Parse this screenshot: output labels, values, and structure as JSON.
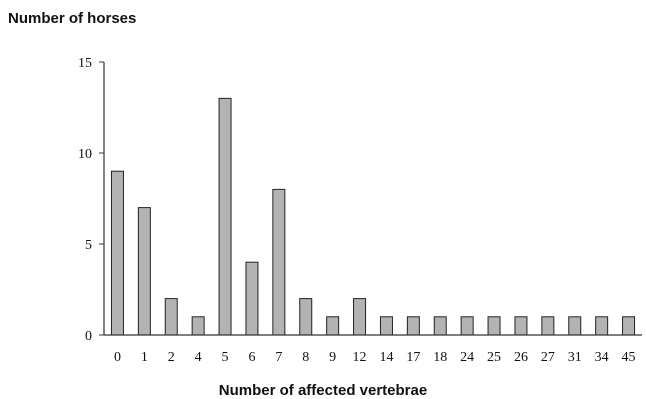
{
  "chart_data": {
    "type": "bar",
    "title": "",
    "ylabel": "Number of horses",
    "xlabel": "Number of affected vertebrae",
    "categories": [
      "0",
      "1",
      "2",
      "4",
      "5",
      "6",
      "7",
      "8",
      "9",
      "12",
      "14",
      "17",
      "18",
      "24",
      "25",
      "26",
      "27",
      "31",
      "34",
      "45"
    ],
    "values": [
      9,
      7,
      2,
      1,
      13,
      4,
      8,
      2,
      1,
      2,
      1,
      1,
      1,
      1,
      1,
      1,
      1,
      1,
      1,
      1
    ],
    "ylim": [
      0,
      15
    ],
    "yticks": [
      0,
      5,
      10,
      15
    ],
    "grid": false,
    "colors": {
      "bar_fill": "#b3b3b3",
      "bar_stroke": "#222222",
      "axis": "#333333"
    }
  }
}
